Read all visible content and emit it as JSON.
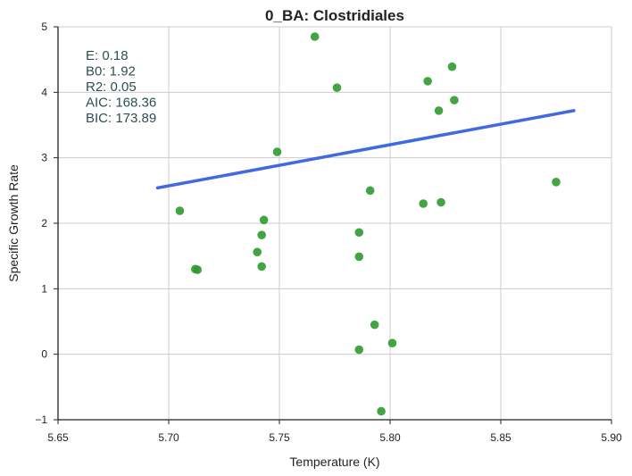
{
  "chart_data": {
    "type": "scatter",
    "title": "0_BA: Clostridiales",
    "xlabel": "Temperature (K)",
    "ylabel": "Specific Growth Rate",
    "xlim": [
      5.65,
      5.9
    ],
    "ylim": [
      -1,
      5
    ],
    "xticks": [
      "5.65",
      "5.70",
      "5.75",
      "5.80",
      "5.85",
      "5.90"
    ],
    "yticks": [
      "−1",
      "0",
      "1",
      "2",
      "3",
      "4",
      "5"
    ],
    "grid": true,
    "points": [
      {
        "x": 5.766,
        "y": 4.85
      },
      {
        "x": 5.776,
        "y": 4.07
      },
      {
        "x": 5.828,
        "y": 4.39
      },
      {
        "x": 5.817,
        "y": 4.17
      },
      {
        "x": 5.829,
        "y": 3.88
      },
      {
        "x": 5.822,
        "y": 3.72
      },
      {
        "x": 5.749,
        "y": 3.09
      },
      {
        "x": 5.791,
        "y": 2.5
      },
      {
        "x": 5.815,
        "y": 2.3
      },
      {
        "x": 5.823,
        "y": 2.32
      },
      {
        "x": 5.875,
        "y": 2.63
      },
      {
        "x": 5.705,
        "y": 2.19
      },
      {
        "x": 5.743,
        "y": 2.05
      },
      {
        "x": 5.742,
        "y": 1.82
      },
      {
        "x": 5.74,
        "y": 1.56
      },
      {
        "x": 5.742,
        "y": 1.34
      },
      {
        "x": 5.712,
        "y": 1.3
      },
      {
        "x": 5.713,
        "y": 1.29
      },
      {
        "x": 5.786,
        "y": 1.86
      },
      {
        "x": 5.786,
        "y": 1.49
      },
      {
        "x": 5.793,
        "y": 0.45
      },
      {
        "x": 5.801,
        "y": 0.17
      },
      {
        "x": 5.786,
        "y": 0.07
      },
      {
        "x": 5.796,
        "y": -0.87
      }
    ],
    "fit_line": {
      "x": [
        5.695,
        5.883
      ],
      "y": [
        2.54,
        3.72
      ]
    },
    "annotation": [
      "E:  0.18",
      "B0:  1.92",
      "R2:  0.05",
      "AIC: 168.36",
      "BIC: 173.89"
    ],
    "colors": {
      "points": "#2e9a2e",
      "line": "#4169e1",
      "annotation": "#2f4f4f",
      "grid": "#cccccc",
      "axis": "#222222"
    }
  }
}
